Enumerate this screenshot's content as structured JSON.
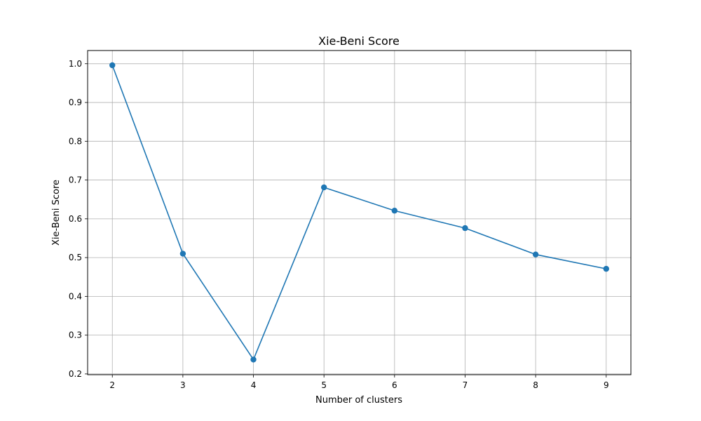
{
  "chart_data": {
    "type": "line",
    "title": "Xie-Beni Score",
    "xlabel": "Number of clusters",
    "ylabel": "Xie-Beni Score",
    "x": [
      2,
      3,
      4,
      5,
      6,
      7,
      8,
      9
    ],
    "series": [
      {
        "values": [
          0.996,
          0.51,
          0.237,
          0.681,
          0.621,
          0.576,
          0.508,
          0.471
        ],
        "color": "#1f77b4",
        "marker": "circle"
      }
    ],
    "xlim": [
      1.65,
      9.35
    ],
    "ylim": [
      0.198,
      1.034
    ],
    "xticks": [
      2,
      3,
      4,
      5,
      6,
      7,
      8,
      9
    ],
    "xtick_labels": [
      "2",
      "3",
      "4",
      "5",
      "6",
      "7",
      "8",
      "9"
    ],
    "yticks": [
      0.2,
      0.3,
      0.4,
      0.5,
      0.6,
      0.7,
      0.8,
      0.9,
      1.0
    ],
    "ytick_labels": [
      "0.2",
      "0.3",
      "0.4",
      "0.5",
      "0.6",
      "0.7",
      "0.8",
      "0.9",
      "1.0"
    ],
    "grid": true,
    "legend": false
  }
}
